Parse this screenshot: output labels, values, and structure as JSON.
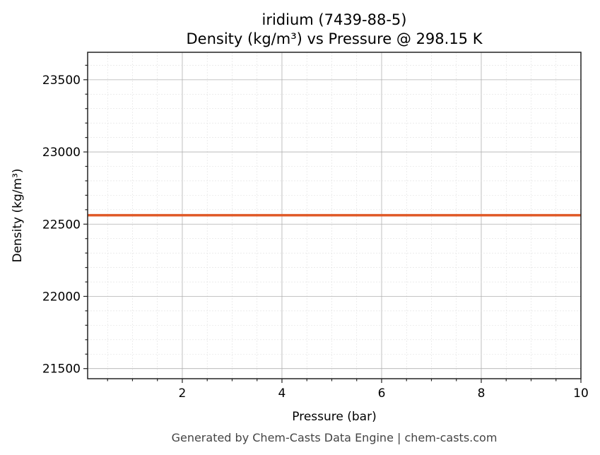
{
  "chart_data": {
    "type": "line",
    "title": "iridium (7439-88-5)",
    "subtitle": "Density (kg/m³) vs Pressure @ 298.15 K",
    "xlabel": "Pressure (bar)",
    "ylabel": "Density (kg/m³)",
    "xlim": [
      0.1,
      10
    ],
    "ylim": [
      21430,
      23690
    ],
    "xticks": [
      2,
      4,
      6,
      8,
      10
    ],
    "yticks": [
      21500,
      22000,
      22500,
      23000,
      23500
    ],
    "grid": true,
    "series": [
      {
        "x": [
          0.1,
          10
        ],
        "y": [
          22562,
          22562
        ],
        "color": "#e05a28"
      }
    ]
  },
  "footer": "Generated by Chem-Casts Data Engine | chem-casts.com"
}
